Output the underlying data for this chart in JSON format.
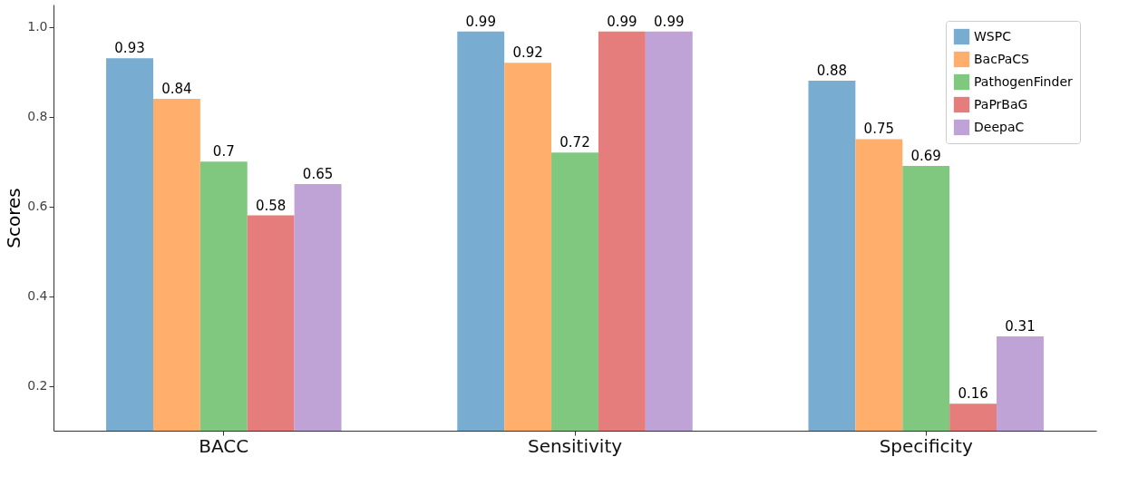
{
  "chart_data": {
    "type": "bar",
    "ylabel": "Scores",
    "categories": [
      "BACC",
      "Sensitivity",
      "Specificity"
    ],
    "series": [
      {
        "name": "WSPC",
        "color": "#78acd0",
        "values": [
          0.93,
          0.99,
          0.88
        ]
      },
      {
        "name": "BacPaCS",
        "color": "#ffaf6b",
        "values": [
          0.84,
          0.92,
          0.75
        ]
      },
      {
        "name": "PathogenFinder",
        "color": "#80c77f",
        "values": [
          0.7,
          0.72,
          0.69
        ]
      },
      {
        "name": "PaPrBaG",
        "color": "#e57d7c",
        "values": [
          0.58,
          0.99,
          0.16
        ]
      },
      {
        "name": "DeepaC",
        "color": "#bfa3d6",
        "values": [
          0.65,
          0.99,
          0.31
        ]
      }
    ],
    "ylim": [
      0.1,
      1.05
    ],
    "yticks": [
      0.2,
      0.4,
      0.6,
      0.8,
      {
        "value": 1,
        "label": "1.0"
      }
    ],
    "data_labels": true,
    "legend": "top right",
    "grid": false
  }
}
